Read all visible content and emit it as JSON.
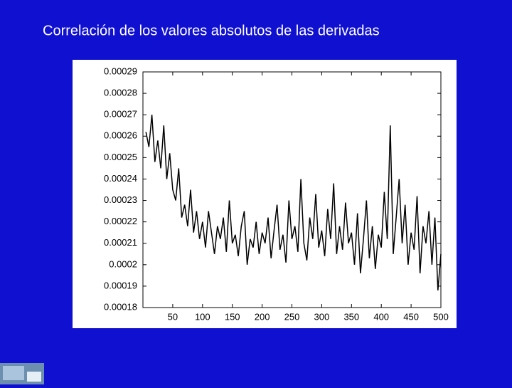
{
  "chart_data": {
    "type": "line",
    "title": "Correlación de los valores absolutos de las derivadas",
    "x": [
      5,
      10,
      15,
      20,
      25,
      30,
      35,
      40,
      45,
      50,
      55,
      60,
      65,
      70,
      75,
      80,
      85,
      90,
      95,
      100,
      105,
      110,
      115,
      120,
      125,
      130,
      135,
      140,
      145,
      150,
      155,
      160,
      165,
      170,
      175,
      180,
      185,
      190,
      195,
      200,
      205,
      210,
      215,
      220,
      225,
      230,
      235,
      240,
      245,
      250,
      255,
      260,
      265,
      270,
      275,
      280,
      285,
      290,
      295,
      300,
      305,
      310,
      315,
      320,
      325,
      330,
      335,
      340,
      345,
      350,
      355,
      360,
      365,
      370,
      375,
      380,
      385,
      390,
      395,
      400,
      405,
      410,
      415,
      420,
      425,
      430,
      435,
      440,
      445,
      450,
      455,
      460,
      465,
      470,
      475,
      480,
      485,
      490,
      495,
      500
    ],
    "values": [
      0.000262,
      0.000255,
      0.00027,
      0.000248,
      0.000258,
      0.000245,
      0.000265,
      0.00024,
      0.000252,
      0.000235,
      0.00023,
      0.000245,
      0.000222,
      0.000228,
      0.000218,
      0.000235,
      0.000215,
      0.000225,
      0.000212,
      0.00022,
      0.000208,
      0.000225,
      0.000215,
      0.000205,
      0.000218,
      0.000212,
      0.000222,
      0.000206,
      0.00023,
      0.00021,
      0.000214,
      0.000204,
      0.000218,
      0.000225,
      0.0002,
      0.000212,
      0.000208,
      0.00022,
      0.000205,
      0.000215,
      0.00021,
      0.000222,
      0.000203,
      0.000216,
      0.000228,
      0.000207,
      0.000214,
      0.000201,
      0.00023,
      0.000212,
      0.000218,
      0.000206,
      0.00024,
      0.00021,
      0.000202,
      0.000222,
      0.000212,
      0.000233,
      0.000208,
      0.000216,
      0.000204,
      0.000226,
      0.000212,
      0.000238,
      0.000205,
      0.000218,
      0.000207,
      0.000229,
      0.00021,
      0.000215,
      0.0002,
      0.000224,
      0.000196,
      0.000212,
      0.00023,
      0.000203,
      0.000218,
      0.000198,
      0.000214,
      0.000208,
      0.000234,
      0.000212,
      0.000265,
      0.000205,
      0.000222,
      0.00024,
      0.00021,
      0.000228,
      0.0002,
      0.000215,
      0.000207,
      0.000232,
      0.000196,
      0.000218,
      0.00021,
      0.000225,
      0.0002,
      0.000222,
      0.000188,
      0.000205
    ],
    "color": "#000000",
    "xlim": [
      0,
      500
    ],
    "xticks": [
      50,
      100,
      150,
      200,
      250,
      300,
      350,
      400,
      450,
      500
    ],
    "ylim": [
      0.00018,
      0.00029
    ],
    "yticks": [
      0.00029,
      0.00028,
      0.00027,
      0.00026,
      0.00025,
      0.00024,
      0.00023,
      0.00022,
      0.00021,
      0.0002,
      0.00019,
      0.00018
    ],
    "grid": false
  }
}
